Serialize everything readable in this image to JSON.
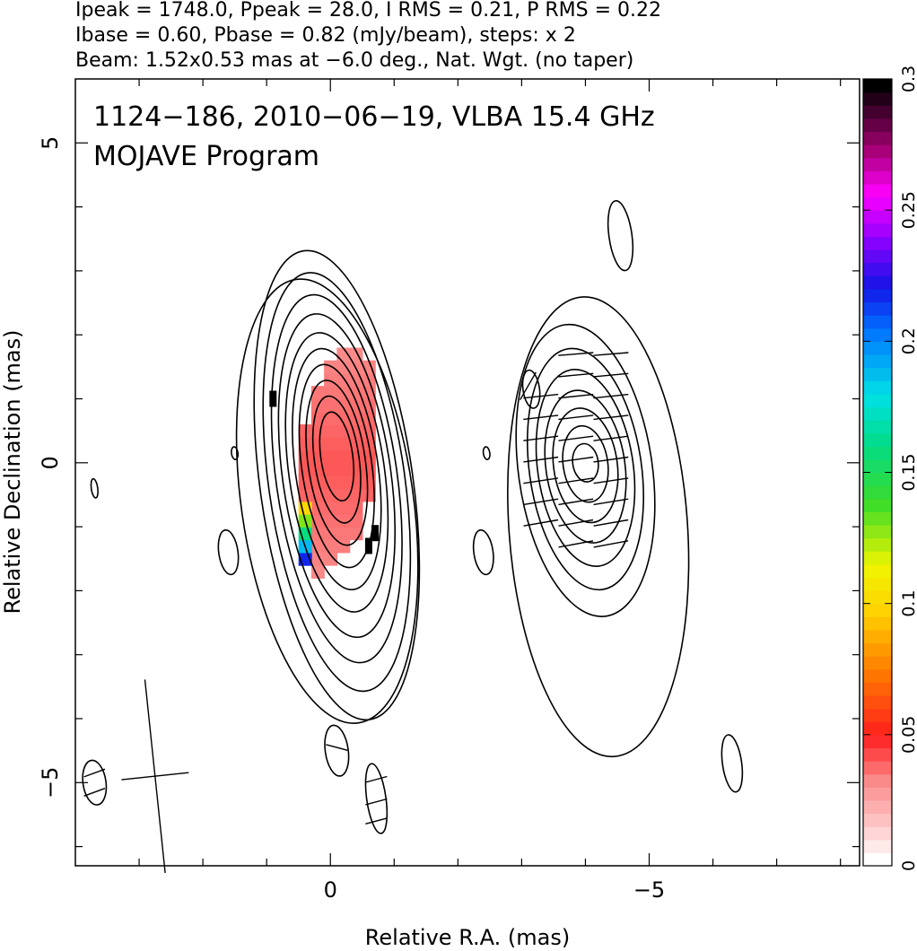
{
  "header": {
    "line1": "Ipeak = 1748.0, Ppeak = 28.0, I RMS = 0.21, P RMS = 0.22",
    "line2": "Ibase = 0.60, Pbase = 0.82 (mJy/beam), steps: x 2",
    "line3": "Beam: 1.52x0.53 mas at −6.0 deg., Nat. Wgt. (no taper)"
  },
  "plot": {
    "title_line1": "1124−186, 2010−06−19, VLBA 15.4 GHz",
    "title_line2": "MOJAVE Program"
  },
  "chart_data": {
    "type": "heatmap",
    "xlabel": "Relative R.A. (mas)",
    "ylabel": "Relative Declination (mas)",
    "xlim": [
      4,
      -8.3
    ],
    "ylim": [
      -6.3,
      6
    ],
    "x_ticks": [
      {
        "value": 0,
        "label": "0"
      },
      {
        "value": -5,
        "label": "−5"
      }
    ],
    "y_ticks": [
      {
        "value": 5,
        "label": "5"
      },
      {
        "value": 0,
        "label": "0"
      },
      {
        "value": -5,
        "label": "−5"
      }
    ],
    "colorbar": {
      "min": 0,
      "max": 0.3,
      "ticks": [
        {
          "value": 0,
          "label": "0"
        },
        {
          "value": 0.05,
          "label": "0.05"
        },
        {
          "value": 0.1,
          "label": "0.1"
        },
        {
          "value": 0.15,
          "label": "0.15"
        },
        {
          "value": 0.2,
          "label": "0.2"
        },
        {
          "value": 0.25,
          "label": "0.25"
        },
        {
          "value": 0.3,
          "label": "0.3"
        }
      ]
    },
    "panels": [
      {
        "name": "total intensity with fractional polarization",
        "center": [
          0,
          0
        ],
        "core_offset": [
          -0.1,
          0.1
        ],
        "contour_axes": [
          [
            0.25,
            0.7
          ],
          [
            0.35,
            1.0
          ],
          [
            0.45,
            1.3
          ],
          [
            0.55,
            1.6
          ],
          [
            0.65,
            1.9
          ],
          [
            0.75,
            2.2
          ],
          [
            0.85,
            2.55
          ],
          [
            0.95,
            2.9
          ],
          [
            1.07,
            3.3
          ],
          [
            1.2,
            3.7
          ]
        ],
        "tilt_deg": -8,
        "fractional_polarization_range": [
          0.0,
          0.3
        ]
      },
      {
        "name": "polarized intensity with EVPA vectors",
        "center": [
          -4,
          0
        ],
        "contour_axes": [
          [
            0.2,
            0.3
          ],
          [
            0.35,
            0.6
          ],
          [
            0.5,
            0.9
          ],
          [
            0.62,
            1.2
          ],
          [
            0.75,
            1.55
          ],
          [
            0.88,
            1.9
          ],
          [
            1.05,
            2.3
          ]
        ],
        "tilt_deg": -8
      }
    ],
    "beam": {
      "major_mas": 1.52,
      "minor_mas": 0.53,
      "pa_deg": -6.0
    }
  },
  "colors": {
    "frame": "#000000",
    "background": "#ffffff",
    "fractional_pol_base": "#f07070"
  }
}
